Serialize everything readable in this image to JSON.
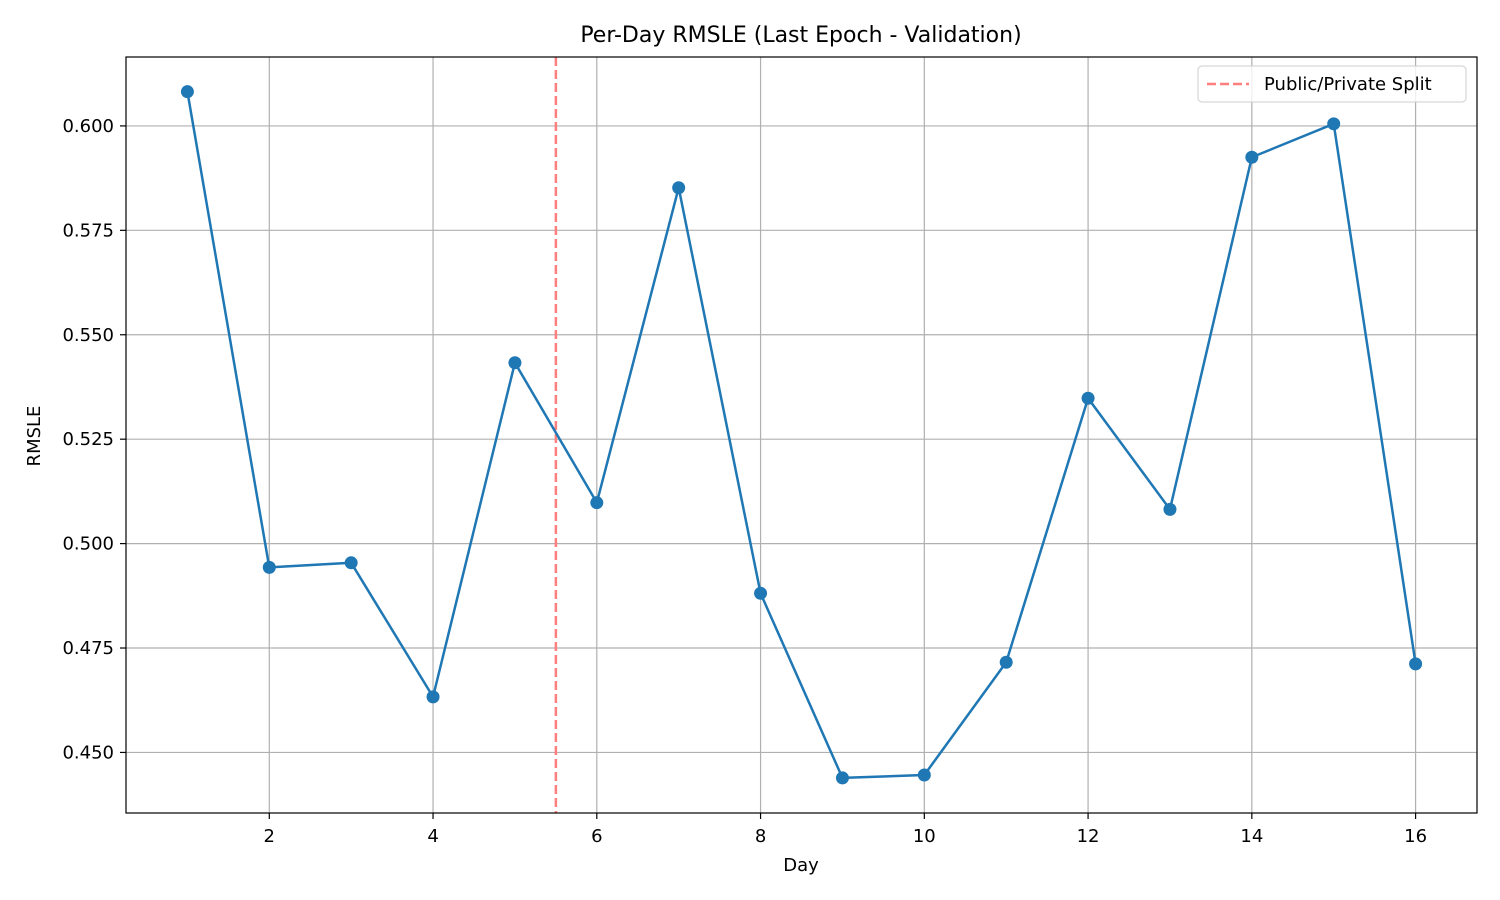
{
  "chart_data": {
    "type": "line",
    "title": "Per-Day RMSLE (Last Epoch - Validation)",
    "xlabel": "Day",
    "ylabel": "RMSLE",
    "x": [
      1,
      2,
      3,
      4,
      5,
      6,
      7,
      8,
      9,
      10,
      11,
      12,
      13,
      14,
      15,
      16
    ],
    "series": [
      {
        "values": [
          0.6082,
          0.4943,
          0.4954,
          0.4633,
          0.5433,
          0.5098,
          0.5852,
          0.4881,
          0.4439,
          0.4446,
          0.4716,
          0.5348,
          0.5082,
          0.5925,
          0.6005,
          0.4712
        ],
        "color": "#1f77b4"
      }
    ],
    "xlim": [
      0.25,
      16.75
    ],
    "ylim": [
      0.4355,
      0.6165
    ],
    "xticks": [
      2,
      4,
      6,
      8,
      10,
      12,
      14,
      16
    ],
    "xtick_labels": [
      "2",
      "4",
      "6",
      "8",
      "10",
      "12",
      "14",
      "16"
    ],
    "yticks": [
      0.45,
      0.475,
      0.5,
      0.525,
      0.55,
      0.575,
      0.6
    ],
    "ytick_labels": [
      "0.450",
      "0.475",
      "0.500",
      "0.525",
      "0.550",
      "0.575",
      "0.600"
    ],
    "vline": {
      "x": 5.5,
      "label": "Public/Private Split",
      "color": "#ff7f7f",
      "style": "dashed"
    },
    "legend": {
      "placement": "top-right",
      "entries": [
        "Public/Private Split"
      ]
    },
    "grid": true
  }
}
